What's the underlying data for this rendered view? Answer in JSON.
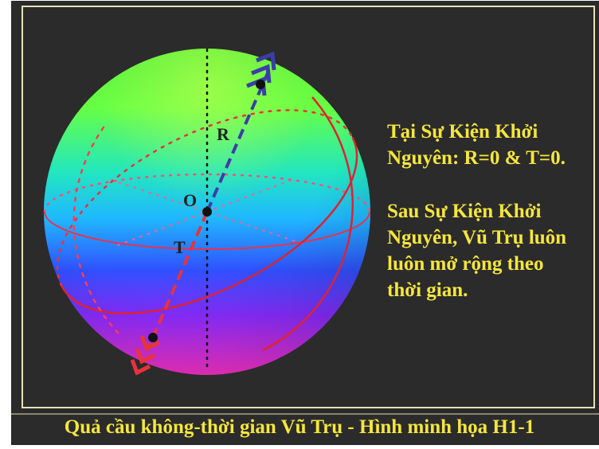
{
  "colors": {
    "background": "#2b2b2b",
    "border": "#e8e1b8",
    "text": "#f5e63c",
    "red_axis": "#e8333a",
    "blue_axis": "#3b3ea8"
  },
  "labels": {
    "r": "R",
    "o": "O",
    "t": "T"
  },
  "notes": {
    "line1": "Tại Sự Kiện Khởi",
    "line2": "Nguyên: R=0 & T=0.",
    "line3": "Sau Sự Kiện Khởi",
    "line4": "Nguyên, Vũ Trụ luôn",
    "line5": "luôn mở rộng theo",
    "line6": "thời gian."
  },
  "caption": "Quả cầu không-thời gian Vũ Trụ - Hình minh họa H1-1"
}
